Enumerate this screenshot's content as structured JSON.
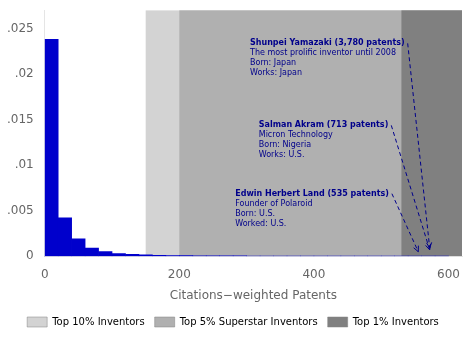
{
  "chart_data": {
    "type": "histogram",
    "xlabel": "Citations−weighted Patents",
    "bins": [
      0,
      20,
      40,
      60,
      80,
      100,
      120,
      140,
      160,
      180,
      200,
      220,
      240,
      260,
      280,
      300,
      320,
      340,
      360,
      380,
      400,
      420,
      440,
      460,
      480,
      500,
      520,
      540,
      560,
      580,
      600
    ],
    "values": [
      0.0238,
      0.0042,
      0.0019,
      0.0009,
      0.0005,
      0.0003,
      0.0002,
      0.00015,
      0.0001,
      8e-05,
      6e-05,
      5e-05,
      4e-05,
      3e-05,
      3e-05,
      2e-05,
      2e-05,
      2e-05,
      1e-05,
      1e-05,
      1e-05,
      1e-05,
      1e-05,
      1e-05,
      1e-05,
      1e-05,
      1e-05,
      1e-05,
      1e-05,
      1e-05
    ],
    "color": "#0000CC",
    "xlim": [
      0,
      620
    ],
    "ylim": [
      0,
      0.027
    ],
    "xticks": [
      0,
      200,
      400,
      600
    ],
    "yticks": [
      0,
      {
        "value": 0.005,
        "label": ".005"
      },
      {
        "value": 0.01,
        "label": ".01"
      },
      {
        "value": 0.015,
        "label": ".015"
      },
      {
        "value": 0.02,
        "label": ".02"
      },
      {
        "value": 0.025,
        "label": ".025"
      }
    ],
    "grid": false,
    "legend": "bottom",
    "regions": [
      {
        "name": "Top 10% Inventors",
        "start": 150,
        "color": "#d3d3d3"
      },
      {
        "name": "Top 5% Superstar Inventors",
        "start": 200,
        "color": "#b0b0b0"
      },
      {
        "name": "Top 1% Inventors",
        "start": 530,
        "color": "#808080"
      }
    ],
    "annotations": [
      {
        "lines": [
          "Shunpei Yamazaki (3,780 patents)",
          "The most prolific inventor until 2008",
          "Born: Japan",
          "Works: Japan"
        ],
        "xy": [
          572,
          0.0009
        ],
        "xytext": [
          305,
          0.0238
        ],
        "color": "#00008B"
      },
      {
        "lines": [
          "Salman Akram (713 patents)",
          "Micron Technology",
          "Born: Nigeria",
          "Works: U.S."
        ],
        "xy": [
          572,
          0.0007
        ],
        "xytext": [
          318,
          0.0148
        ],
        "color": "#00008B"
      },
      {
        "lines": [
          "Edwin Herbert Land (535 patents)",
          "Founder of Polaroid",
          "Born: U.S.",
          "Worked: U.S."
        ],
        "xy": [
          555,
          0.0005
        ],
        "xytext": [
          283,
          0.0073
        ],
        "color": "#00008B"
      }
    ]
  }
}
